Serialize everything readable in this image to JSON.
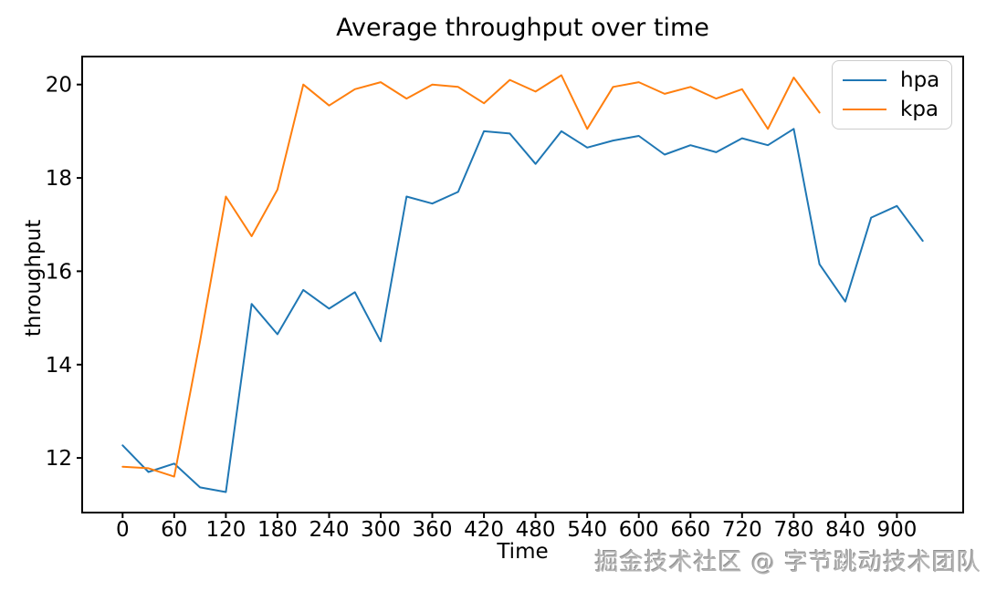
{
  "figure": {
    "watermark": "掘金技术社区 @ 字节跳动技术团队"
  },
  "legend": {
    "items": [
      {
        "label": "hpa",
        "color": "#1f77b4"
      },
      {
        "label": "kpa",
        "color": "#ff7f0e"
      }
    ]
  },
  "chart_data": {
    "type": "line",
    "title": "Average throughput over time",
    "xlabel": "Time",
    "ylabel": "throughput",
    "grid": false,
    "legend_position": "upper right",
    "xlim": [
      -47,
      977
    ],
    "ylim": [
      10.83,
      20.6
    ],
    "xticks": [
      0,
      60,
      120,
      180,
      240,
      300,
      360,
      420,
      480,
      540,
      600,
      660,
      720,
      780,
      840,
      900
    ],
    "yticks": [
      12,
      14,
      16,
      18,
      20
    ],
    "series": [
      {
        "name": "hpa",
        "color": "#1f77b4",
        "x": [
          0,
          30,
          60,
          90,
          120,
          150,
          180,
          210,
          240,
          270,
          300,
          330,
          360,
          390,
          420,
          450,
          480,
          510,
          540,
          570,
          600,
          630,
          660,
          690,
          720,
          750,
          780,
          810,
          840,
          870,
          900,
          930
        ],
        "values": [
          12.27,
          11.7,
          11.88,
          11.37,
          11.27,
          15.3,
          14.65,
          15.6,
          15.2,
          15.55,
          14.5,
          17.6,
          17.45,
          17.7,
          19.0,
          18.95,
          18.3,
          19.0,
          18.65,
          18.8,
          18.9,
          18.5,
          18.7,
          18.55,
          18.85,
          18.7,
          19.05,
          16.15,
          15.35,
          17.15,
          17.4,
          16.65
        ]
      },
      {
        "name": "kpa",
        "color": "#ff7f0e",
        "x": [
          0,
          30,
          60,
          90,
          120,
          150,
          180,
          210,
          240,
          270,
          300,
          330,
          360,
          390,
          420,
          450,
          480,
          510,
          540,
          570,
          600,
          630,
          660,
          690,
          720,
          750,
          780,
          810
        ],
        "values": [
          11.81,
          11.78,
          11.6,
          14.5,
          17.6,
          16.75,
          17.75,
          20.0,
          19.55,
          19.9,
          20.05,
          19.7,
          20.0,
          19.95,
          19.6,
          20.1,
          19.85,
          20.2,
          19.05,
          19.95,
          20.05,
          19.8,
          19.95,
          19.7,
          19.9,
          19.05,
          20.15,
          19.4
        ]
      }
    ]
  }
}
